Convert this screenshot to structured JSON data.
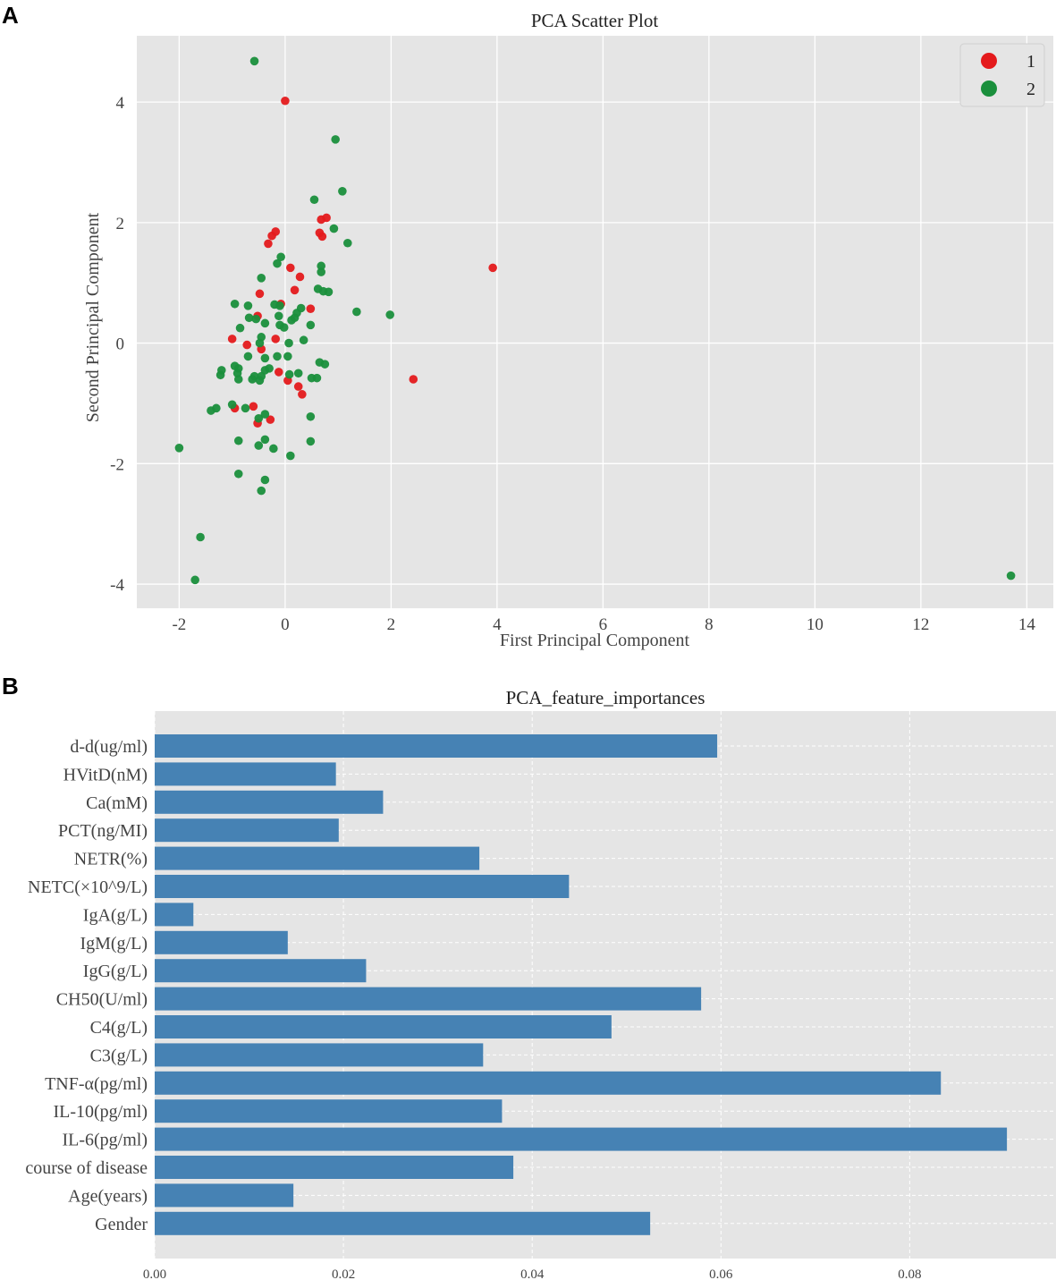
{
  "panels": {
    "a": "A",
    "b": "B"
  },
  "chart_data": [
    {
      "type": "scatter",
      "title": "PCA Scatter Plot",
      "xlabel": "First Principal Component",
      "ylabel": "Second Principal Component",
      "xlim": [
        -2.8,
        14.5
      ],
      "ylim": [
        -4.4,
        5.1
      ],
      "xticks": [
        -2,
        0,
        2,
        4,
        6,
        8,
        10,
        12,
        14
      ],
      "yticks": [
        -4,
        -2,
        0,
        2,
        4
      ],
      "grid": true,
      "legend_position": "top-right",
      "series": [
        {
          "name": "1",
          "color": "#e41a1c",
          "points": [
            [
              0.0,
              4.02
            ],
            [
              0.78,
              2.08
            ],
            [
              0.68,
              2.05
            ],
            [
              0.65,
              1.83
            ],
            [
              0.7,
              1.77
            ],
            [
              -0.18,
              1.85
            ],
            [
              -0.25,
              1.78
            ],
            [
              -0.32,
              1.65
            ],
            [
              3.92,
              1.25
            ],
            [
              0.1,
              1.25
            ],
            [
              0.28,
              1.1
            ],
            [
              -0.48,
              0.82
            ],
            [
              0.18,
              0.88
            ],
            [
              -0.08,
              0.65
            ],
            [
              0.48,
              0.57
            ],
            [
              -0.52,
              0.45
            ],
            [
              -1.0,
              0.07
            ],
            [
              -0.18,
              0.07
            ],
            [
              -0.72,
              -0.03
            ],
            [
              -0.45,
              -0.1
            ],
            [
              -0.12,
              -0.48
            ],
            [
              0.05,
              -0.62
            ],
            [
              2.42,
              -0.6
            ],
            [
              0.25,
              -0.72
            ],
            [
              0.32,
              -0.85
            ],
            [
              -0.95,
              -1.08
            ],
            [
              -0.6,
              -1.05
            ],
            [
              -0.28,
              -1.27
            ],
            [
              -0.52,
              -1.33
            ]
          ]
        },
        {
          "name": "2",
          "color": "#1a8f3c",
          "points": [
            [
              -0.58,
              4.68
            ],
            [
              0.95,
              3.38
            ],
            [
              1.08,
              2.52
            ],
            [
              0.55,
              2.38
            ],
            [
              0.92,
              1.9
            ],
            [
              1.18,
              1.66
            ],
            [
              -0.08,
              1.43
            ],
            [
              -0.15,
              1.32
            ],
            [
              0.68,
              1.28
            ],
            [
              0.68,
              1.18
            ],
            [
              -0.45,
              1.08
            ],
            [
              0.62,
              0.9
            ],
            [
              0.72,
              0.86
            ],
            [
              0.82,
              0.85
            ],
            [
              1.35,
              0.52
            ],
            [
              1.98,
              0.47
            ],
            [
              -0.95,
              0.65
            ],
            [
              -0.7,
              0.62
            ],
            [
              -0.2,
              0.64
            ],
            [
              -0.1,
              0.62
            ],
            [
              0.3,
              0.58
            ],
            [
              0.22,
              0.5
            ],
            [
              -0.68,
              0.42
            ],
            [
              -0.55,
              0.4
            ],
            [
              -0.12,
              0.45
            ],
            [
              0.12,
              0.38
            ],
            [
              -0.38,
              0.33
            ],
            [
              -0.1,
              0.3
            ],
            [
              0.48,
              0.3
            ],
            [
              -0.02,
              0.26
            ],
            [
              -0.85,
              0.25
            ],
            [
              -0.45,
              0.1
            ],
            [
              0.18,
              0.42
            ],
            [
              -0.48,
              0.0
            ],
            [
              0.07,
              0.0
            ],
            [
              0.35,
              0.05
            ],
            [
              -0.7,
              -0.22
            ],
            [
              -0.38,
              -0.25
            ],
            [
              -0.15,
              -0.22
            ],
            [
              0.05,
              -0.22
            ],
            [
              -0.95,
              -0.38
            ],
            [
              -0.88,
              -0.42
            ],
            [
              -1.2,
              -0.45
            ],
            [
              -1.22,
              -0.53
            ],
            [
              -0.9,
              -0.5
            ],
            [
              -0.58,
              -0.55
            ],
            [
              -0.38,
              -0.45
            ],
            [
              -0.3,
              -0.42
            ],
            [
              -0.45,
              -0.55
            ],
            [
              -0.88,
              -0.6
            ],
            [
              -0.62,
              -0.6
            ],
            [
              -0.48,
              -0.62
            ],
            [
              0.08,
              -0.52
            ],
            [
              0.25,
              -0.5
            ],
            [
              0.5,
              -0.58
            ],
            [
              0.6,
              -0.58
            ],
            [
              0.65,
              -0.32
            ],
            [
              0.75,
              -0.35
            ],
            [
              -1.0,
              -1.02
            ],
            [
              -1.3,
              -1.08
            ],
            [
              -1.4,
              -1.12
            ],
            [
              -0.75,
              -1.08
            ],
            [
              -0.38,
              -1.18
            ],
            [
              -0.5,
              -1.25
            ],
            [
              0.48,
              -1.22
            ],
            [
              -0.88,
              -1.62
            ],
            [
              -0.38,
              -1.6
            ],
            [
              -0.5,
              -1.7
            ],
            [
              -0.22,
              -1.75
            ],
            [
              0.48,
              -1.63
            ],
            [
              0.1,
              -1.87
            ],
            [
              -2.0,
              -1.74
            ],
            [
              -0.88,
              -2.17
            ],
            [
              -0.38,
              -2.27
            ],
            [
              -0.45,
              -2.45
            ],
            [
              -1.6,
              -3.22
            ],
            [
              -1.7,
              -3.93
            ],
            [
              13.7,
              -3.86
            ]
          ]
        }
      ]
    },
    {
      "type": "bar",
      "orientation": "horizontal",
      "title": "PCA_feature_importances",
      "xlim": [
        0,
        0.0955
      ],
      "xticks": [
        0.0,
        0.02,
        0.04,
        0.06,
        0.08
      ],
      "xtick_labels": [
        "0.00",
        "0.02",
        "0.04",
        "0.06",
        "0.08"
      ],
      "grid": true,
      "color": "#4682b4",
      "categories": [
        "d-d(ug/ml)",
        "HVitD(nM)",
        "Ca(mM)",
        "PCT(ng/MI)",
        "NETR(%)",
        "NETC(×10^9/L)",
        "IgA(g/L)",
        "IgM(g/L)",
        "IgG(g/L)",
        "CH50(U/ml)",
        "C4(g/L)",
        "C3(g/L)",
        "TNF-α(pg/ml)",
        "IL-10(pg/ml)",
        "IL-6(pg/ml)",
        "course of disease",
        "Age(years)",
        "Gender"
      ],
      "values": [
        0.0596,
        0.0192,
        0.0242,
        0.0195,
        0.0344,
        0.0439,
        0.0041,
        0.0141,
        0.0224,
        0.0579,
        0.0484,
        0.0348,
        0.0833,
        0.0368,
        0.0903,
        0.038,
        0.0147,
        0.0525
      ]
    }
  ]
}
